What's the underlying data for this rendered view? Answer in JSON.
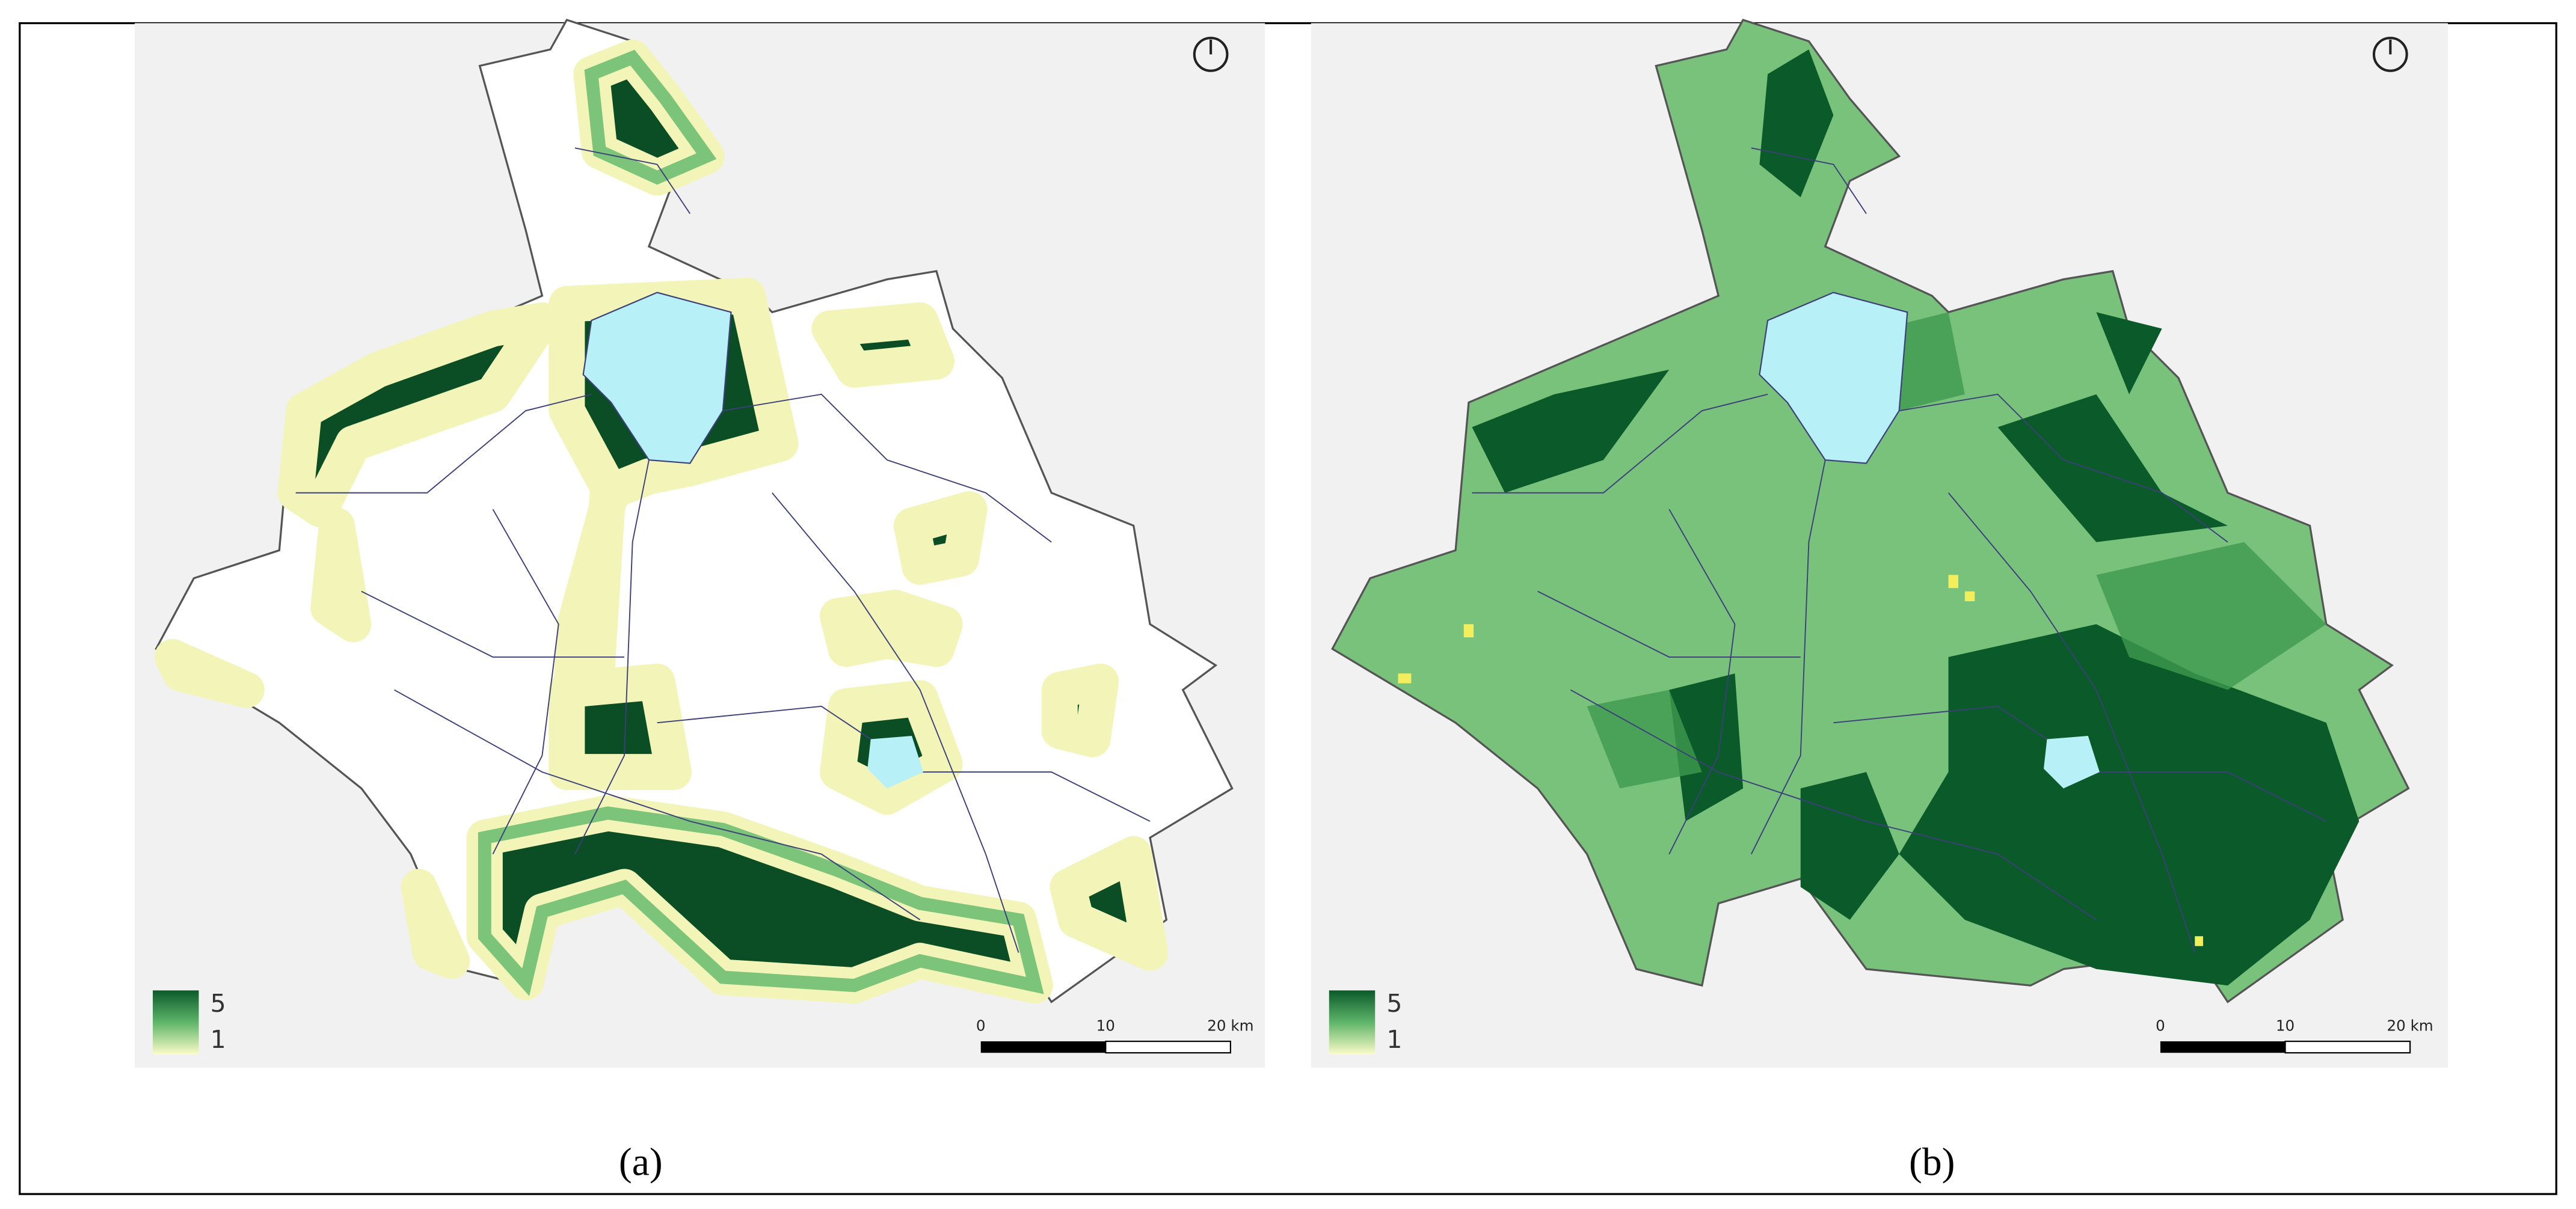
{
  "panels": [
    {
      "caption": "(a)",
      "legend": {
        "max": "5",
        "min": "1"
      },
      "scale_bar": {
        "labels": [
          "0",
          "10",
          "20 km"
        ]
      }
    },
    {
      "caption": "(b)",
      "legend": {
        "max": "5",
        "min": "1"
      },
      "scale_bar": {
        "labels": [
          "0",
          "10",
          "20 km"
        ]
      }
    }
  ]
}
